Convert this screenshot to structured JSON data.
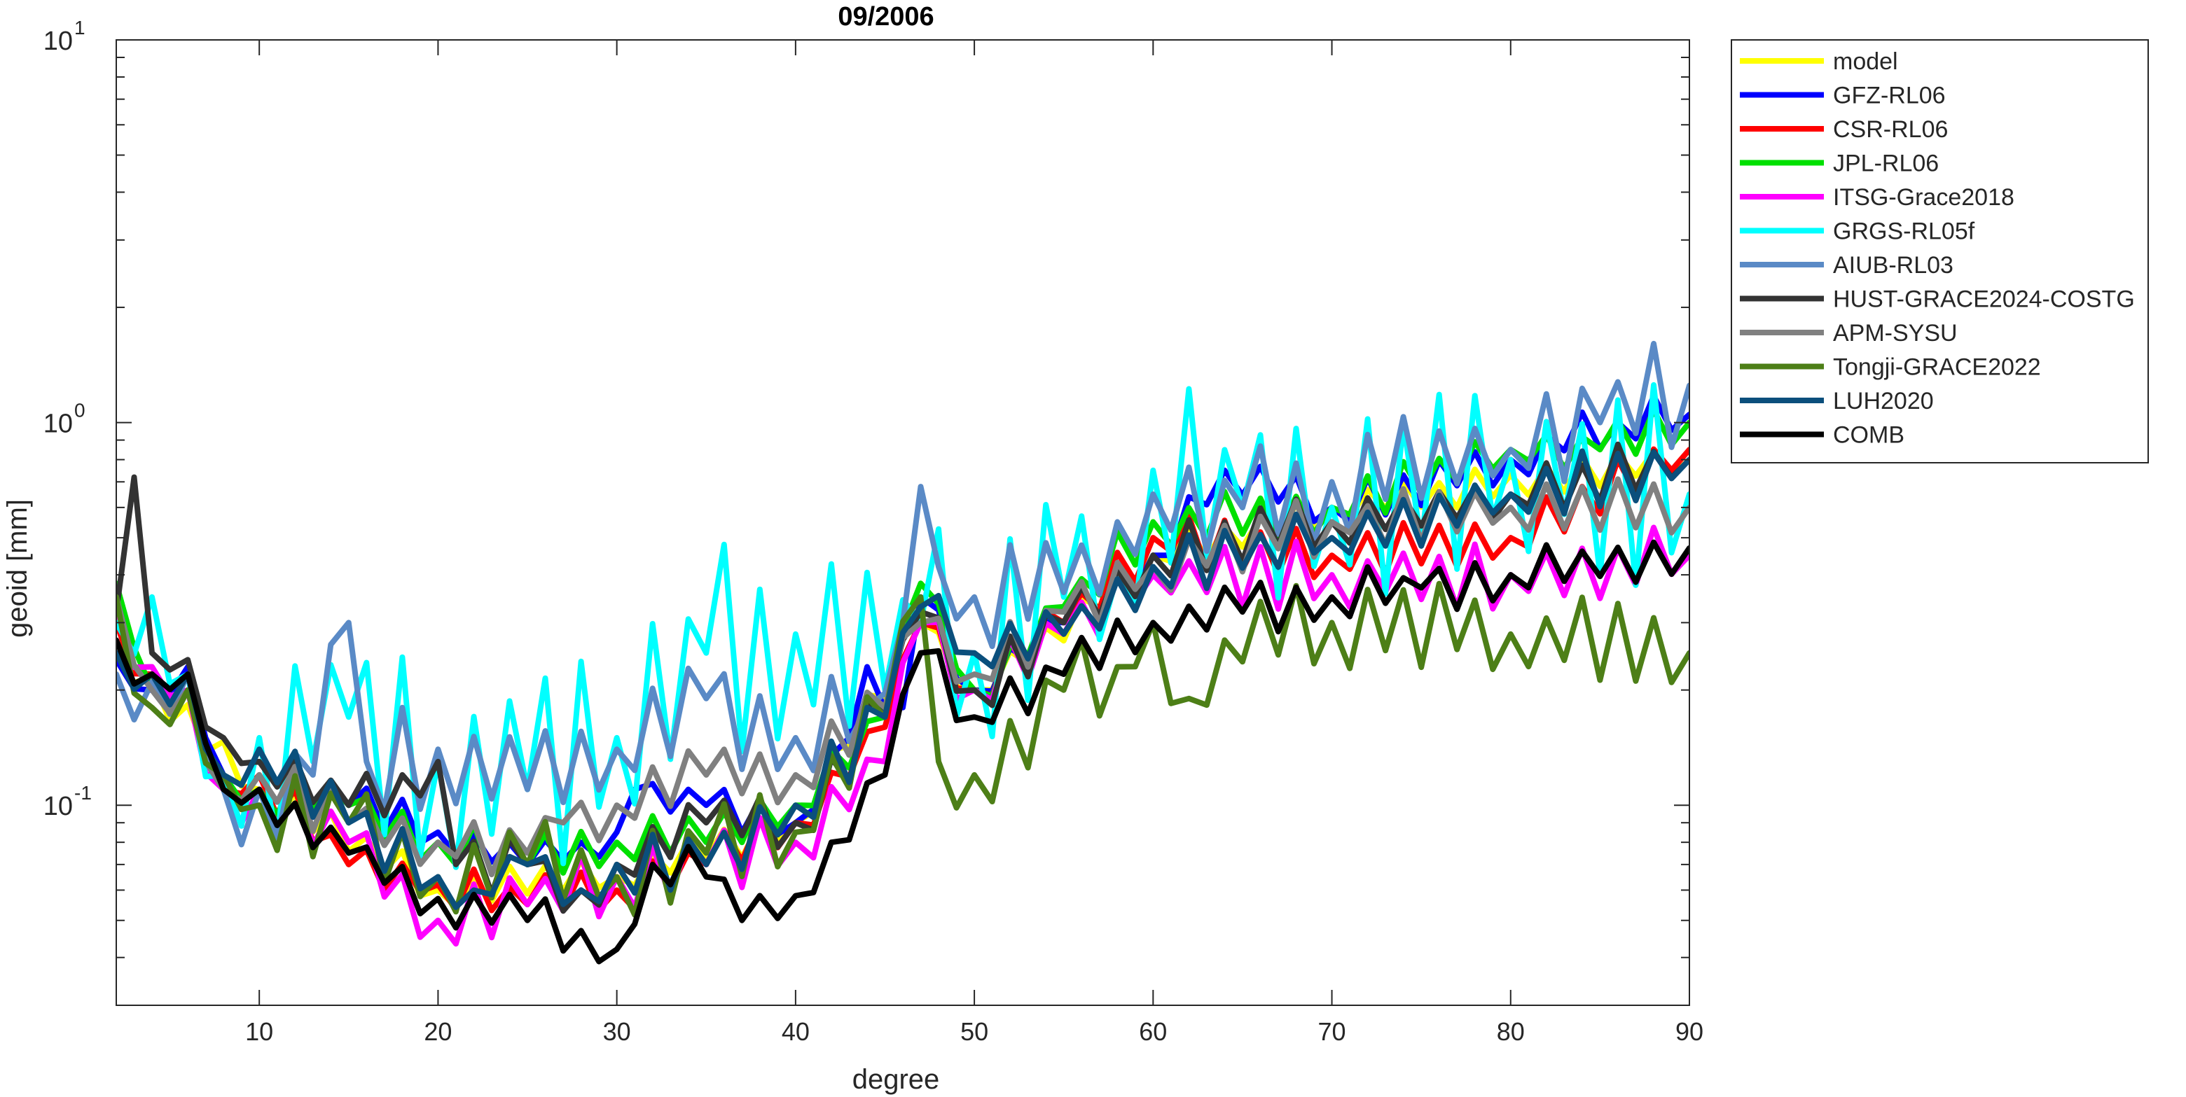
{
  "chart_data": {
    "type": "line",
    "title": "09/2006",
    "xlabel": "degree",
    "ylabel": "geoid [mm]",
    "xlim": [
      2,
      90
    ],
    "ylim": [
      0.03,
      10
    ],
    "yscale": "log",
    "xticks": [
      10,
      20,
      30,
      40,
      50,
      60,
      70,
      80,
      90
    ],
    "xtick_labels": [
      "10",
      "20",
      "30",
      "40",
      "50",
      "60",
      "70",
      "80",
      "90"
    ],
    "yticks": [
      {
        "value": 0.1,
        "base": "10",
        "exp": "-1"
      },
      {
        "value": 1,
        "base": "10",
        "exp": "0"
      },
      {
        "value": 10,
        "base": "10",
        "exp": "1"
      }
    ],
    "grid": false,
    "legend_position": "outside-right-top",
    "series": [
      {
        "name": "model",
        "color": "#FFFF00",
        "keypoints": [
          [
            2,
            0.25
          ],
          [
            10,
            0.11
          ],
          [
            20,
            0.06
          ],
          [
            30,
            0.065
          ],
          [
            40,
            0.09
          ],
          [
            47,
            0.3
          ],
          [
            50,
            0.2
          ],
          [
            60,
            0.45
          ],
          [
            70,
            0.6
          ],
          [
            90,
            0.8
          ]
        ],
        "noise": 0.05
      },
      {
        "name": "GFZ-RL06",
        "color": "#0000FF",
        "keypoints": [
          [
            2,
            0.24
          ],
          [
            4,
            0.2
          ],
          [
            6,
            0.23
          ],
          [
            8,
            0.12
          ],
          [
            10,
            0.1
          ],
          [
            15,
            0.1
          ],
          [
            20,
            0.085
          ],
          [
            25,
            0.07
          ],
          [
            28,
            0.08
          ],
          [
            30,
            0.085
          ],
          [
            31,
            0.11
          ],
          [
            35,
            0.1
          ],
          [
            40,
            0.09
          ],
          [
            43,
            0.15
          ],
          [
            44,
            0.23
          ],
          [
            46,
            0.18
          ],
          [
            47,
            0.35
          ],
          [
            50,
            0.2
          ],
          [
            55,
            0.3
          ],
          [
            60,
            0.45
          ],
          [
            64,
            0.75
          ],
          [
            70,
            0.6
          ],
          [
            80,
            0.8
          ],
          [
            86,
            1.0
          ],
          [
            90,
            1.05
          ]
        ],
        "noise": 0.06
      },
      {
        "name": "CSR-RL06",
        "color": "#FF0000",
        "keypoints": [
          [
            2,
            0.3
          ],
          [
            4,
            0.22
          ],
          [
            6,
            0.2
          ],
          [
            8,
            0.11
          ],
          [
            10,
            0.12
          ],
          [
            15,
            0.07
          ],
          [
            20,
            0.062
          ],
          [
            25,
            0.055
          ],
          [
            30,
            0.06
          ],
          [
            35,
            0.07
          ],
          [
            40,
            0.09
          ],
          [
            45,
            0.16
          ],
          [
            47,
            0.3
          ],
          [
            50,
            0.2
          ],
          [
            55,
            0.3
          ],
          [
            60,
            0.5
          ],
          [
            70,
            0.45
          ],
          [
            80,
            0.5
          ],
          [
            90,
            0.85
          ]
        ],
        "noise": 0.07
      },
      {
        "name": "JPL-RL06",
        "color": "#00E000",
        "keypoints": [
          [
            2,
            0.38
          ],
          [
            4,
            0.2
          ],
          [
            6,
            0.2
          ],
          [
            8,
            0.12
          ],
          [
            10,
            0.11
          ],
          [
            15,
            0.1
          ],
          [
            20,
            0.08
          ],
          [
            25,
            0.07
          ],
          [
            30,
            0.08
          ],
          [
            35,
            0.08
          ],
          [
            40,
            0.1
          ],
          [
            45,
            0.17
          ],
          [
            47,
            0.38
          ],
          [
            50,
            0.2
          ],
          [
            55,
            0.33
          ],
          [
            60,
            0.55
          ],
          [
            70,
            0.6
          ],
          [
            80,
            0.85
          ],
          [
            85,
            0.85
          ],
          [
            90,
            1.0
          ]
        ],
        "noise": 0.07
      },
      {
        "name": "ITSG-Grace2018",
        "color": "#FF00FF",
        "keypoints": [
          [
            2,
            0.33
          ],
          [
            4,
            0.23
          ],
          [
            6,
            0.2
          ],
          [
            8,
            0.11
          ],
          [
            10,
            0.11
          ],
          [
            15,
            0.08
          ],
          [
            20,
            0.05
          ],
          [
            25,
            0.055
          ],
          [
            30,
            0.065
          ],
          [
            35,
            0.07
          ],
          [
            40,
            0.08
          ],
          [
            45,
            0.13
          ],
          [
            47,
            0.3
          ],
          [
            50,
            0.2
          ],
          [
            55,
            0.28
          ],
          [
            60,
            0.4
          ],
          [
            70,
            0.4
          ],
          [
            80,
            0.4
          ],
          [
            90,
            0.45
          ]
        ],
        "noise": 0.09
      },
      {
        "name": "GRGS-RL05f",
        "color": "#00FFFF",
        "keypoints": [
          [
            2,
            0.3
          ],
          [
            4,
            0.35
          ],
          [
            6,
            0.22
          ],
          [
            8,
            0.12
          ],
          [
            10,
            0.15
          ],
          [
            13,
            0.13
          ],
          [
            15,
            0.17
          ],
          [
            20,
            0.13
          ],
          [
            25,
            0.11
          ],
          [
            30,
            0.15
          ],
          [
            35,
            0.25
          ],
          [
            40,
            0.28
          ],
          [
            45,
            0.2
          ],
          [
            47,
            0.3
          ],
          [
            50,
            0.25
          ],
          [
            55,
            0.35
          ],
          [
            58,
            0.4
          ],
          [
            60,
            0.75
          ],
          [
            65,
            0.6
          ],
          [
            70,
            0.6
          ],
          [
            80,
            0.8
          ],
          [
            90,
            0.65
          ]
        ],
        "noise": 0.28
      },
      {
        "name": "AIUB-RL03",
        "color": "#5A8AC6",
        "keypoints": [
          [
            2,
            0.22
          ],
          [
            4,
            0.21
          ],
          [
            6,
            0.22
          ],
          [
            8,
            0.11
          ],
          [
            10,
            0.11
          ],
          [
            13,
            0.12
          ],
          [
            15,
            0.3
          ],
          [
            16,
            0.13
          ],
          [
            20,
            0.14
          ],
          [
            25,
            0.11
          ],
          [
            30,
            0.14
          ],
          [
            35,
            0.19
          ],
          [
            40,
            0.15
          ],
          [
            44,
            0.18
          ],
          [
            46,
            0.3
          ],
          [
            47,
            0.68
          ],
          [
            48,
            0.42
          ],
          [
            50,
            0.35
          ],
          [
            55,
            0.36
          ],
          [
            58,
            0.55
          ],
          [
            60,
            0.65
          ],
          [
            65,
            0.6
          ],
          [
            70,
            0.7
          ],
          [
            80,
            0.85
          ],
          [
            85,
            1.0
          ],
          [
            90,
            1.25
          ]
        ],
        "noise": 0.15
      },
      {
        "name": "HUST-GRACE2024-COSTG",
        "color": "#333333",
        "keypoints": [
          [
            2,
            0.32
          ],
          [
            3,
            0.72
          ],
          [
            4,
            0.25
          ],
          [
            6,
            0.24
          ],
          [
            8,
            0.15
          ],
          [
            10,
            0.13
          ],
          [
            15,
            0.1
          ],
          [
            18,
            0.12
          ],
          [
            20,
            0.13
          ],
          [
            21,
            0.07
          ],
          [
            25,
            0.07
          ],
          [
            28,
            0.06
          ],
          [
            30,
            0.07
          ],
          [
            35,
            0.09
          ],
          [
            40,
            0.09
          ],
          [
            45,
            0.18
          ],
          [
            47,
            0.32
          ],
          [
            50,
            0.2
          ],
          [
            55,
            0.3
          ],
          [
            60,
            0.45
          ],
          [
            70,
            0.55
          ],
          [
            80,
            0.65
          ],
          [
            90,
            0.8
          ]
        ],
        "noise": 0.08
      },
      {
        "name": "APM-SYSU",
        "color": "#808080",
        "keypoints": [
          [
            2,
            0.35
          ],
          [
            4,
            0.2
          ],
          [
            6,
            0.2
          ],
          [
            8,
            0.11
          ],
          [
            10,
            0.12
          ],
          [
            15,
            0.09
          ],
          [
            20,
            0.08
          ],
          [
            25,
            0.075
          ],
          [
            27,
            0.09
          ],
          [
            30,
            0.1
          ],
          [
            35,
            0.12
          ],
          [
            40,
            0.12
          ],
          [
            45,
            0.18
          ],
          [
            47,
            0.3
          ],
          [
            50,
            0.22
          ],
          [
            55,
            0.32
          ],
          [
            60,
            0.42
          ],
          [
            70,
            0.55
          ],
          [
            80,
            0.6
          ],
          [
            90,
            0.6
          ]
        ],
        "noise": 0.08
      },
      {
        "name": "Tongji-GRACE2022",
        "color": "#4D7F17",
        "keypoints": [
          [
            2,
            0.35
          ],
          [
            4,
            0.18
          ],
          [
            6,
            0.2
          ],
          [
            8,
            0.12
          ],
          [
            10,
            0.1
          ],
          [
            15,
            0.09
          ],
          [
            20,
            0.065
          ],
          [
            25,
            0.07
          ],
          [
            30,
            0.065
          ],
          [
            35,
            0.075
          ],
          [
            40,
            0.085
          ],
          [
            45,
            0.17
          ],
          [
            47,
            0.35
          ],
          [
            48,
            0.13
          ],
          [
            50,
            0.12
          ],
          [
            55,
            0.2
          ],
          [
            58,
            0.23
          ],
          [
            60,
            0.3
          ],
          [
            62,
            0.19
          ],
          [
            64,
            0.27
          ],
          [
            70,
            0.3
          ],
          [
            80,
            0.28
          ],
          [
            90,
            0.25
          ]
        ],
        "noise": 0.12
      },
      {
        "name": "LUH2020",
        "color": "#0B4F7C",
        "keypoints": [
          [
            2,
            0.25
          ],
          [
            4,
            0.22
          ],
          [
            6,
            0.22
          ],
          [
            8,
            0.12
          ],
          [
            10,
            0.14
          ],
          [
            15,
            0.09
          ],
          [
            20,
            0.065
          ],
          [
            22,
            0.06
          ],
          [
            25,
            0.07
          ],
          [
            28,
            0.06
          ],
          [
            30,
            0.07
          ],
          [
            35,
            0.07
          ],
          [
            40,
            0.1
          ],
          [
            45,
            0.17
          ],
          [
            47,
            0.33
          ],
          [
            50,
            0.25
          ],
          [
            55,
            0.28
          ],
          [
            60,
            0.42
          ],
          [
            70,
            0.5
          ],
          [
            80,
            0.65
          ],
          [
            90,
            0.8
          ]
        ],
        "noise": 0.08
      },
      {
        "name": "COMB",
        "color": "#000000",
        "keypoints": [
          [
            2,
            0.27
          ],
          [
            4,
            0.22
          ],
          [
            6,
            0.22
          ],
          [
            8,
            0.11
          ],
          [
            10,
            0.11
          ],
          [
            15,
            0.075
          ],
          [
            20,
            0.057
          ],
          [
            25,
            0.05
          ],
          [
            28,
            0.047
          ],
          [
            30,
            0.042
          ],
          [
            32,
            0.07
          ],
          [
            35,
            0.065
          ],
          [
            37,
            0.05
          ],
          [
            40,
            0.058
          ],
          [
            42,
            0.08
          ],
          [
            45,
            0.12
          ],
          [
            47,
            0.25
          ],
          [
            50,
            0.17
          ],
          [
            55,
            0.22
          ],
          [
            60,
            0.3
          ],
          [
            65,
            0.32
          ],
          [
            70,
            0.35
          ],
          [
            75,
            0.37
          ],
          [
            80,
            0.4
          ],
          [
            90,
            0.47
          ]
        ],
        "noise": 0.07
      }
    ]
  }
}
